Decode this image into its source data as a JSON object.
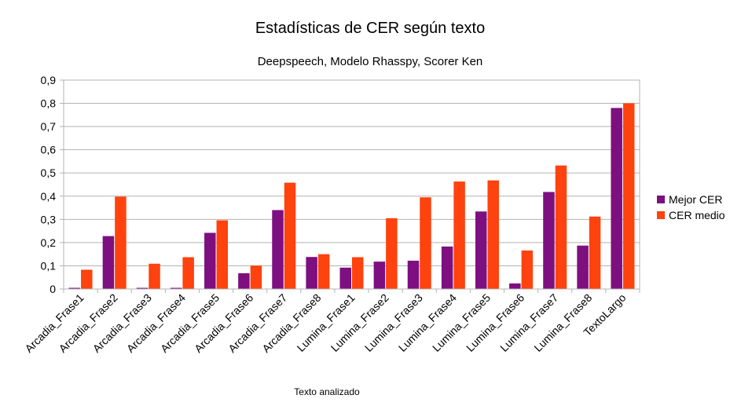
{
  "chart_data": {
    "type": "bar",
    "title": "Estadísticas de CER según texto",
    "subtitle": "Deepspeech, Modelo Rhasspy, Scorer Ken",
    "xlabel": "Texto analizado",
    "ylabel": "",
    "ylim": [
      0,
      0.9
    ],
    "yticks": [
      "0",
      "0,1",
      "0,2",
      "0,3",
      "0,4",
      "0,5",
      "0,6",
      "0,7",
      "0,8",
      "0,9"
    ],
    "grid": true,
    "legend_position": "right",
    "categories": [
      "Arcadia_Frase1",
      "Arcadia_Frase2",
      "Arcadia_Frase3",
      "Arcadia_Frase4",
      "Arcadia_Frase5",
      "Arcadia_Frase6",
      "Arcadia_Frase7",
      "Arcadia_Frase8",
      "Lumina_Frase1",
      "Lumina_Frase2",
      "Lumina_Frase3",
      "Lumina_Frase4",
      "Lumina_Frase5",
      "Lumina_Frase6",
      "Lumina_Frase7",
      "Lumina_Frase8",
      "TextoLargo"
    ],
    "series": [
      {
        "name": "Mejor CER",
        "color": "#7e0f80",
        "values": [
          0.005,
          0.228,
          0.005,
          0.005,
          0.242,
          0.068,
          0.34,
          0.138,
          0.092,
          0.118,
          0.122,
          0.183,
          0.334,
          0.024,
          0.418,
          0.187,
          0.78
        ]
      },
      {
        "name": "CER medio",
        "color": "#ff420e",
        "values": [
          0.083,
          0.398,
          0.109,
          0.137,
          0.296,
          0.101,
          0.458,
          0.15,
          0.137,
          0.305,
          0.395,
          0.463,
          0.468,
          0.166,
          0.532,
          0.312,
          0.8
        ]
      }
    ]
  }
}
